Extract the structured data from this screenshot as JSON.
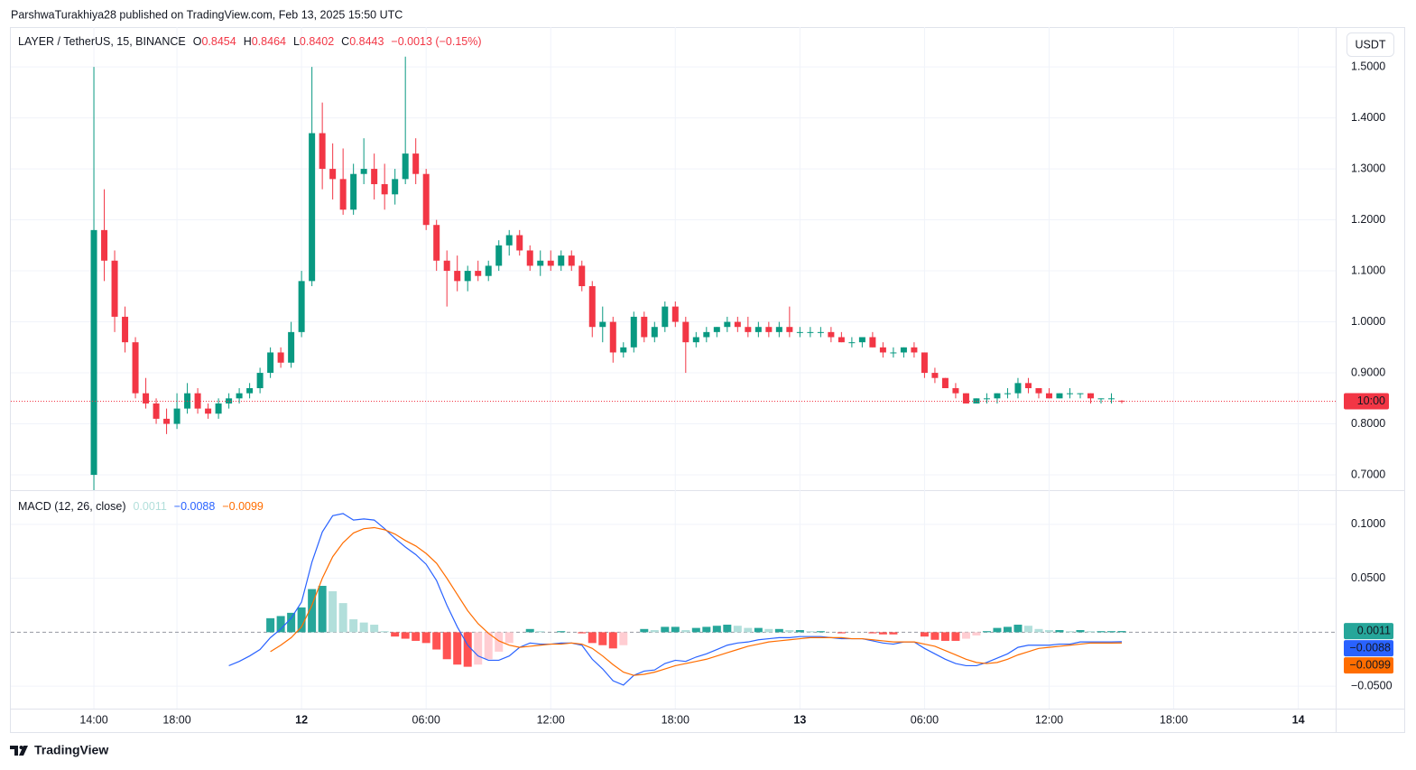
{
  "header": {
    "published": "ParshwaTurakhiya28 published on TradingView.com, Feb 13, 2025 15:50 UTC",
    "currency": "USDT",
    "countdown": "10:00",
    "brand": "TradingView"
  },
  "chart_data": [
    {
      "type": "candlestick",
      "title": "LAYER / TetherUS, 15, BINANCE",
      "ohlc_letters": [
        "O",
        "H",
        "L",
        "C"
      ],
      "change": "−0.0013 (−0.15%)",
      "up_color": "#089981",
      "down_color": "#f23645",
      "grid": true,
      "xlim": [
        10,
        73.8
      ],
      "xticks": [
        {
          "value": 14,
          "label": "14:00"
        },
        {
          "value": 18,
          "label": "18:00"
        },
        {
          "value": 24,
          "label": "12"
        },
        {
          "value": 30,
          "label": "06:00"
        },
        {
          "value": 36,
          "label": "12:00"
        },
        {
          "value": 42,
          "label": "18:00"
        },
        {
          "value": 48,
          "label": "13"
        },
        {
          "value": 54,
          "label": "06:00"
        },
        {
          "value": 60,
          "label": "12:00"
        },
        {
          "value": 66,
          "label": "18:00"
        },
        {
          "value": 72,
          "label": "14"
        }
      ],
      "ylim": [
        0.67,
        1.578
      ],
      "yticks": [
        {
          "value": 0.7,
          "label": "0.7000"
        },
        {
          "value": 0.8,
          "label": "0.8000"
        },
        {
          "value": 0.9,
          "label": "0.9000"
        },
        {
          "value": 1.0,
          "label": "1.0000"
        },
        {
          "value": 1.1,
          "label": "1.1000"
        },
        {
          "value": 1.2,
          "label": "1.2000"
        },
        {
          "value": 1.3,
          "label": "1.3000"
        },
        {
          "value": 1.4,
          "label": "1.4000"
        },
        {
          "value": 1.5,
          "label": "1.5000"
        }
      ],
      "x": [
        14,
        14.5,
        15,
        15.5,
        16,
        16.5,
        17,
        17.5,
        18,
        18.5,
        19,
        19.5,
        20,
        20.5,
        21,
        21.5,
        22,
        22.5,
        23,
        23.5,
        24,
        24.5,
        25,
        25.5,
        26,
        26.5,
        27,
        27.5,
        28,
        28.5,
        29,
        29.5,
        30,
        30.5,
        31,
        31.5,
        32,
        32.5,
        33,
        33.5,
        34,
        34.5,
        35,
        35.5,
        36,
        36.5,
        37,
        37.5,
        38,
        38.5,
        39,
        39.5,
        40,
        40.5,
        41,
        41.5,
        42,
        42.5,
        43,
        43.5,
        44,
        44.5,
        45,
        45.5,
        46,
        46.5,
        47,
        47.5,
        48,
        48.5,
        49,
        49.5,
        50,
        50.5,
        51,
        51.5,
        52,
        52.5,
        53,
        53.5,
        54,
        54.5,
        55,
        55.5,
        56,
        56.5,
        57,
        57.5,
        58,
        58.5,
        59,
        59.5,
        60,
        60.5,
        61,
        61.5,
        62,
        62.5,
        63,
        63.5
      ],
      "open": [
        0.7,
        1.18,
        1.12,
        1.01,
        0.96,
        0.86,
        0.84,
        0.81,
        0.8,
        0.83,
        0.86,
        0.83,
        0.82,
        0.84,
        0.85,
        0.86,
        0.87,
        0.9,
        0.94,
        0.92,
        0.98,
        1.08,
        1.37,
        1.3,
        1.28,
        1.22,
        1.29,
        1.3,
        1.27,
        1.25,
        1.28,
        1.33,
        1.29,
        1.19,
        1.12,
        1.1,
        1.08,
        1.1,
        1.09,
        1.11,
        1.15,
        1.17,
        1.14,
        1.11,
        1.12,
        1.11,
        1.13,
        1.11,
        1.07,
        0.99,
        1.0,
        0.94,
        0.95,
        1.01,
        0.97,
        0.99,
        1.03,
        1.0,
        0.96,
        0.97,
        0.98,
        0.99,
        1.0,
        0.99,
        0.98,
        0.99,
        0.98,
        0.99,
        0.98,
        0.98,
        0.98,
        0.98,
        0.97,
        0.96,
        0.96,
        0.97,
        0.95,
        0.94,
        0.94,
        0.95,
        0.94,
        0.9,
        0.89,
        0.87,
        0.86,
        0.84,
        0.85,
        0.85,
        0.86,
        0.86,
        0.88,
        0.87,
        0.86,
        0.85,
        0.86,
        0.86,
        0.86,
        0.85,
        0.85,
        0.8454
      ],
      "high": [
        1.5,
        1.26,
        1.14,
        1.03,
        0.97,
        0.89,
        0.85,
        0.83,
        0.86,
        0.88,
        0.87,
        0.84,
        0.85,
        0.86,
        0.87,
        0.88,
        0.91,
        0.95,
        0.95,
        1.0,
        1.1,
        1.5,
        1.43,
        1.35,
        1.34,
        1.31,
        1.36,
        1.33,
        1.31,
        1.3,
        1.52,
        1.36,
        1.3,
        1.2,
        1.14,
        1.13,
        1.11,
        1.12,
        1.12,
        1.16,
        1.18,
        1.18,
        1.15,
        1.14,
        1.14,
        1.14,
        1.14,
        1.12,
        1.08,
        1.03,
        1.01,
        0.96,
        1.02,
        1.02,
        1.0,
        1.04,
        1.04,
        1.01,
        0.98,
        0.99,
        0.99,
        1.01,
        1.01,
        1.01,
        1.0,
        1.0,
        1.0,
        1.03,
        0.99,
        0.99,
        0.99,
        0.99,
        0.98,
        0.97,
        0.97,
        0.98,
        0.96,
        0.95,
        0.95,
        0.96,
        0.94,
        0.91,
        0.89,
        0.88,
        0.86,
        0.85,
        0.86,
        0.86,
        0.87,
        0.89,
        0.89,
        0.87,
        0.87,
        0.86,
        0.87,
        0.86,
        0.86,
        0.85,
        0.86,
        0.8464
      ],
      "low": [
        0.67,
        1.08,
        0.98,
        0.94,
        0.85,
        0.83,
        0.8,
        0.78,
        0.79,
        0.82,
        0.82,
        0.81,
        0.81,
        0.83,
        0.84,
        0.85,
        0.86,
        0.89,
        0.91,
        0.91,
        0.97,
        1.07,
        1.26,
        1.24,
        1.21,
        1.21,
        1.27,
        1.24,
        1.22,
        1.23,
        1.27,
        1.27,
        1.18,
        1.1,
        1.03,
        1.06,
        1.06,
        1.08,
        1.08,
        1.1,
        1.13,
        1.13,
        1.1,
        1.09,
        1.1,
        1.1,
        1.1,
        1.06,
        0.97,
        0.96,
        0.92,
        0.93,
        0.94,
        0.96,
        0.96,
        0.98,
        0.99,
        0.9,
        0.95,
        0.96,
        0.97,
        0.98,
        0.98,
        0.97,
        0.97,
        0.97,
        0.97,
        0.97,
        0.97,
        0.97,
        0.97,
        0.96,
        0.96,
        0.95,
        0.95,
        0.95,
        0.93,
        0.93,
        0.93,
        0.93,
        0.89,
        0.88,
        0.87,
        0.85,
        0.84,
        0.84,
        0.84,
        0.84,
        0.85,
        0.85,
        0.86,
        0.85,
        0.85,
        0.85,
        0.85,
        0.85,
        0.84,
        0.84,
        0.84,
        0.8402
      ],
      "close": [
        1.18,
        1.12,
        1.01,
        0.96,
        0.86,
        0.84,
        0.81,
        0.8,
        0.83,
        0.86,
        0.83,
        0.82,
        0.84,
        0.85,
        0.86,
        0.87,
        0.9,
        0.94,
        0.92,
        0.98,
        1.08,
        1.37,
        1.3,
        1.28,
        1.22,
        1.29,
        1.3,
        1.27,
        1.25,
        1.28,
        1.33,
        1.29,
        1.19,
        1.12,
        1.1,
        1.08,
        1.1,
        1.09,
        1.11,
        1.15,
        1.17,
        1.14,
        1.11,
        1.12,
        1.11,
        1.13,
        1.11,
        1.07,
        0.99,
        1.0,
        0.94,
        0.95,
        1.01,
        0.97,
        0.99,
        1.03,
        1.0,
        0.96,
        0.97,
        0.98,
        0.99,
        1.0,
        0.99,
        0.98,
        0.99,
        0.98,
        0.99,
        0.98,
        0.98,
        0.98,
        0.98,
        0.97,
        0.96,
        0.96,
        0.97,
        0.95,
        0.94,
        0.94,
        0.95,
        0.94,
        0.9,
        0.89,
        0.87,
        0.86,
        0.84,
        0.85,
        0.85,
        0.86,
        0.86,
        0.88,
        0.87,
        0.86,
        0.85,
        0.86,
        0.86,
        0.86,
        0.85,
        0.85,
        0.85,
        0.8443
      ]
    },
    {
      "type": "macd",
      "title": "MACD (12, 26, close)",
      "grid": true,
      "xlim": [
        10,
        73.8
      ],
      "ylim": [
        -0.0708,
        0.1317
      ],
      "yticks": [
        {
          "value": -0.05,
          "label": "−0.0500"
        },
        {
          "value": 0.05,
          "label": "0.0500"
        },
        {
          "value": 0.1,
          "label": "0.1000"
        }
      ],
      "x": [
        14,
        14.5,
        15,
        15.5,
        16,
        16.5,
        17,
        17.5,
        18,
        18.5,
        19,
        19.5,
        20,
        20.5,
        21,
        21.5,
        22,
        22.5,
        23,
        23.5,
        24,
        24.5,
        25,
        25.5,
        26,
        26.5,
        27,
        27.5,
        28,
        28.5,
        29,
        29.5,
        30,
        30.5,
        31,
        31.5,
        32,
        32.5,
        33,
        33.5,
        34,
        34.5,
        35,
        35.5,
        36,
        36.5,
        37,
        37.5,
        38,
        38.5,
        39,
        39.5,
        40,
        40.5,
        41,
        41.5,
        42,
        42.5,
        43,
        43.5,
        44,
        44.5,
        45,
        45.5,
        46,
        46.5,
        47,
        47.5,
        48,
        48.5,
        49,
        49.5,
        50,
        50.5,
        51,
        51.5,
        52,
        52.5,
        53,
        53.5,
        54,
        54.5,
        55,
        55.5,
        56,
        56.5,
        57,
        57.5,
        58,
        58.5,
        59,
        59.5,
        60,
        60.5,
        61,
        61.5,
        62,
        62.5,
        63,
        63.5
      ],
      "series": [
        {
          "kind": "histogram",
          "colors": [
            "#26a69a",
            "#b2dfdb",
            "#ff5252",
            "#ffcdd2"
          ],
          "values": [
            null,
            null,
            null,
            null,
            null,
            null,
            null,
            null,
            null,
            null,
            null,
            null,
            null,
            null,
            null,
            null,
            null,
            0.013,
            0.015,
            0.018,
            0.023,
            0.04,
            0.043,
            0.038,
            0.027,
            0.012,
            0.009,
            0.007,
            0.001,
            -0.004,
            -0.006,
            -0.008,
            -0.01,
            -0.016,
            -0.025,
            -0.03,
            -0.032,
            -0.03,
            -0.025,
            -0.018,
            -0.01,
            0,
            0.003,
            0.001,
            0,
            0.001,
            0,
            -0.001,
            -0.01,
            -0.012,
            -0.015,
            -0.012,
            0,
            0.003,
            0.002,
            0.005,
            0.005,
            0.002,
            0.004,
            0.005,
            0.006,
            0.007,
            0.006,
            0.004,
            0.004,
            0.003,
            0.003,
            0.002,
            0.002,
            0.001,
            0.001,
            0,
            -0.001,
            0,
            0,
            -0.001,
            -0.002,
            -0.002,
            0,
            0,
            -0.004,
            -0.007,
            -0.008,
            -0.008,
            -0.006,
            -0.003,
            0.001,
            0.004,
            0.005,
            0.007,
            0.006,
            0.003,
            0.002,
            0.002,
            0.001,
            0.002,
            0.001,
            0.001,
            0.001,
            0.0011
          ]
        },
        {
          "kind": "line",
          "color": "#2962ff",
          "last_label": "−0.0088",
          "values": [
            null,
            null,
            null,
            null,
            null,
            null,
            null,
            null,
            null,
            null,
            null,
            null,
            null,
            -0.031,
            -0.027,
            -0.022,
            -0.016,
            -0.005,
            0.003,
            0.013,
            0.028,
            0.065,
            0.093,
            0.108,
            0.11,
            0.104,
            0.105,
            0.104,
            0.096,
            0.087,
            0.079,
            0.072,
            0.063,
            0.048,
            0.025,
            0.005,
            -0.012,
            -0.022,
            -0.026,
            -0.026,
            -0.022,
            -0.014,
            -0.01,
            -0.011,
            -0.011,
            -0.01,
            -0.01,
            -0.012,
            -0.025,
            -0.034,
            -0.045,
            -0.049,
            -0.04,
            -0.036,
            -0.035,
            -0.029,
            -0.026,
            -0.027,
            -0.023,
            -0.02,
            -0.016,
            -0.012,
            -0.01,
            -0.009,
            -0.007,
            -0.006,
            -0.005,
            -0.005,
            -0.004,
            -0.004,
            -0.004,
            -0.005,
            -0.006,
            -0.006,
            -0.006,
            -0.008,
            -0.01,
            -0.011,
            -0.009,
            -0.009,
            -0.015,
            -0.02,
            -0.025,
            -0.029,
            -0.031,
            -0.031,
            -0.028,
            -0.024,
            -0.02,
            -0.014,
            -0.012,
            -0.012,
            -0.012,
            -0.011,
            -0.011,
            -0.009,
            -0.009,
            -0.009,
            -0.009,
            -0.0088
          ]
        },
        {
          "kind": "line",
          "color": "#ff6d00",
          "last_label": "−0.0099",
          "values": [
            null,
            null,
            null,
            null,
            null,
            null,
            null,
            null,
            null,
            null,
            null,
            null,
            null,
            null,
            null,
            null,
            null,
            -0.018,
            -0.012,
            -0.005,
            0.005,
            0.025,
            0.05,
            0.07,
            0.083,
            0.092,
            0.096,
            0.097,
            0.095,
            0.091,
            0.085,
            0.08,
            0.073,
            0.064,
            0.05,
            0.035,
            0.02,
            0.008,
            -0.001,
            -0.008,
            -0.012,
            -0.014,
            -0.013,
            -0.012,
            -0.011,
            -0.011,
            -0.01,
            -0.011,
            -0.015,
            -0.022,
            -0.03,
            -0.037,
            -0.04,
            -0.039,
            -0.037,
            -0.034,
            -0.031,
            -0.029,
            -0.027,
            -0.025,
            -0.022,
            -0.019,
            -0.016,
            -0.013,
            -0.011,
            -0.009,
            -0.008,
            -0.007,
            -0.006,
            -0.005,
            -0.005,
            -0.005,
            -0.005,
            -0.006,
            -0.006,
            -0.007,
            -0.008,
            -0.009,
            -0.009,
            -0.009,
            -0.011,
            -0.013,
            -0.017,
            -0.021,
            -0.025,
            -0.028,
            -0.029,
            -0.028,
            -0.025,
            -0.021,
            -0.018,
            -0.015,
            -0.014,
            -0.013,
            -0.012,
            -0.011,
            -0.01,
            -0.01,
            -0.01,
            -0.0099
          ]
        }
      ]
    }
  ]
}
